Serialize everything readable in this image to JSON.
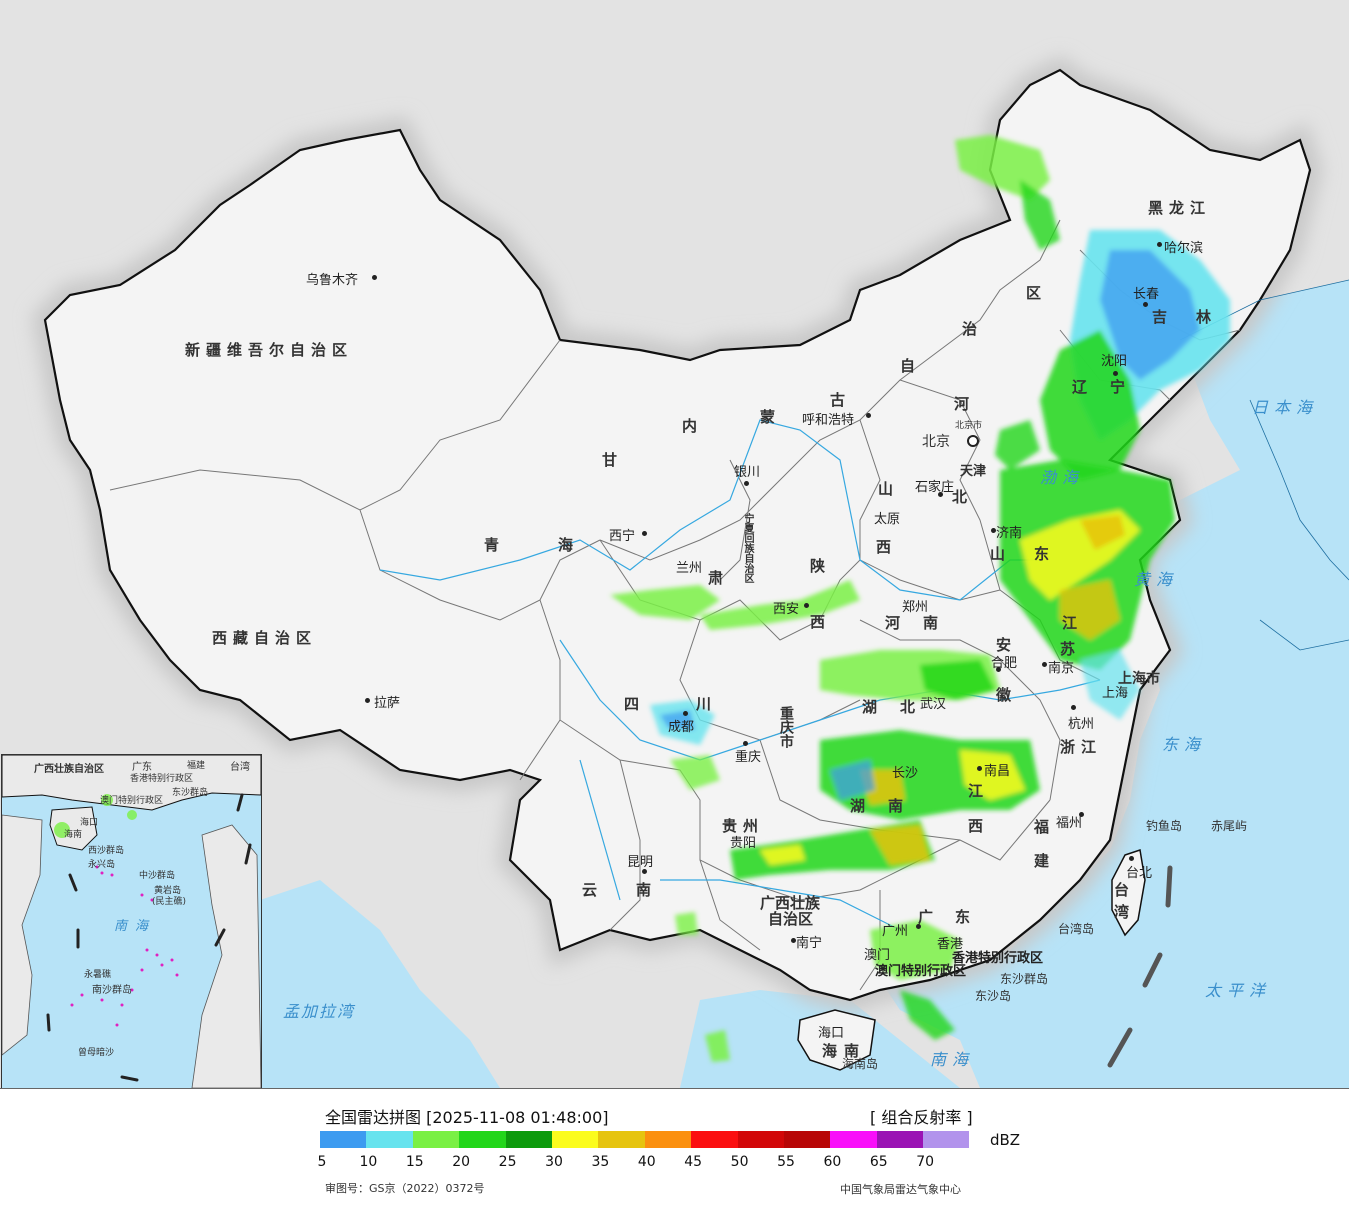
{
  "map": {
    "provinces": {
      "xinjiang": "新疆维吾尔自治区",
      "xizang": "西藏自治区",
      "qinghai_a": "青",
      "qinghai_b": "海",
      "gansu": "甘",
      "gansu_b": "肃",
      "neimenggu_1": "内",
      "neimenggu_2": "蒙",
      "neimenggu_3": "古",
      "neimenggu_4": "自",
      "neimenggu_5": "治",
      "neimenggu_6": "区",
      "heilongjiang": "黑龙江",
      "jilin_1": "吉",
      "jilin_2": "林",
      "liaoning_1": "辽",
      "liaoning_2": "宁",
      "hebei_1": "河",
      "hebei_2": "北",
      "shanxi_1": "山",
      "shanxi_2": "西",
      "shaanxi_1": "陕",
      "shaanxi_2": "西",
      "ningxia": "宁夏回族自治区",
      "shandong_1": "山",
      "shandong_2": "东",
      "henan_1": "河",
      "henan_2": "南",
      "jiangsu_1": "江",
      "jiangsu_2": "苏",
      "anhui_1": "安",
      "anhui_2": "徽",
      "sichuan_1": "四",
      "sichuan_2": "川",
      "hubei_1": "湖",
      "hubei_2": "北",
      "chongqing": "重庆市",
      "zhejiang": "浙江",
      "hunan_1": "湖",
      "hunan_2": "南",
      "jiangxi_1": "江",
      "jiangxi_2": "西",
      "guizhou": "贵州",
      "fujian_1": "福",
      "fujian_2": "建",
      "yunnan_1": "云",
      "yunnan_2": "南",
      "guangxi_1": "广西壮族",
      "guangxi_2": "自治区",
      "guangdong_1": "广",
      "guangdong_2": "东",
      "hainan_1": "海",
      "hainan_2": "南",
      "taiwan_1": "台",
      "taiwan_2": "湾",
      "shanghai": "上海市",
      "tianjin": "天津",
      "beijing": "北京"
    },
    "cities": {
      "urumqi": "乌鲁木齐",
      "lhasa": "拉萨",
      "xining": "西宁",
      "lanzhou": "兰州",
      "yinchuan": "银川",
      "hohhot": "呼和浩特",
      "beijing_city": "北京市",
      "shijiazhuang": "石家庄",
      "taiyuan": "太原",
      "jinan": "济南",
      "zhengzhou": "郑州",
      "xian": "西安",
      "chengdu": "成都",
      "chongqing_city": "重庆",
      "wuhan": "武汉",
      "hefei": "合肥",
      "nanjing": "南京",
      "shanghai_city": "上海",
      "hangzhou": "杭州",
      "changsha": "长沙",
      "nanchang": "南昌",
      "fuzhou": "福州",
      "guiyang": "贵阳",
      "kunming": "昆明",
      "nanning": "南宁",
      "guangzhou": "广州",
      "haikou": "海口",
      "taipei": "台北",
      "shenyang": "沈阳",
      "changchun": "长春",
      "harbin": "哈尔滨",
      "hongkong": "香港",
      "macau": "澳门",
      "hk_sar": "香港特别行政区",
      "macau_sar": "澳门特别行政区"
    },
    "islands": {
      "diaoyu": "钓鱼岛",
      "chiwei": "赤尾屿",
      "taiwan_island": "台湾岛",
      "dongsha_islands": "东沙群岛",
      "dongsha_island": "东沙岛",
      "hainan_island": "海南岛"
    },
    "seas": {
      "japan_sea": "日本海",
      "bohai": "渤海",
      "yellow_sea": "黄海",
      "east_sea": "东海",
      "pacific": "太平洋",
      "south_sea": "南海",
      "bengal": "孟加拉湾"
    }
  },
  "inset": {
    "label_guangxi": "广西壮族自治区",
    "label_guangdong": "广东",
    "label_fujian": "福建",
    "label_taiwan": "台湾",
    "label_hk": "香港特别行政区",
    "label_macau": "澳门特别行政区",
    "label_dongsha": "东沙群岛",
    "label_haikou": "海口",
    "label_hainan": "海南",
    "label_xisha": "西沙群岛",
    "label_zhongsha": "中沙群岛",
    "label_huangyan": "黄岩岛",
    "label_huangyan_alt": "(民主礁)",
    "label_south_sea": "南海",
    "label_nansha": "南沙群岛",
    "label_yongshu": "永暑礁",
    "label_zengmu": "曾母暗沙",
    "label_yongxing": "永兴岛"
  },
  "legend": {
    "title": "全国雷达拼图 [2025-11-08 01:48:00]",
    "product": "[ 组合反射率 ]",
    "unit": "dBZ",
    "review_number": "审图号：GS京（2022）0372号",
    "source": "中国气象局雷达气象中心",
    "ticks": [
      "5",
      "10",
      "15",
      "20",
      "25",
      "30",
      "35",
      "40",
      "45",
      "50",
      "55",
      "60",
      "65",
      "70"
    ],
    "colors": [
      "#3d9bf0",
      "#67e3ee",
      "#7af044",
      "#22d61a",
      "#0c9a0c",
      "#fbfc1e",
      "#e6c40f",
      "#fb900f",
      "#fb0f10",
      "#d20708",
      "#b80606",
      "#f90ffa",
      "#9a13b4",
      "#b293ec"
    ]
  }
}
